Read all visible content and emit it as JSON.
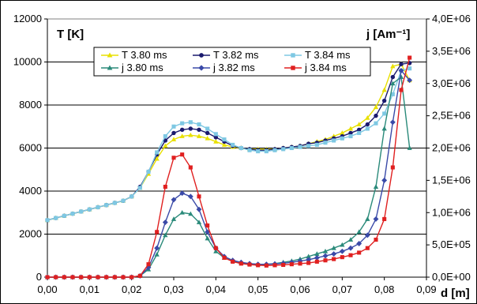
{
  "chart_data": {
    "type": "line",
    "xlabel": "d [m]",
    "ylabel_left": "T [K]",
    "ylabel_right": "j [Am⁻¹]",
    "x_ticks": [
      "0,00",
      "0,01",
      "0,02",
      "0,03",
      "0,04",
      "0,05",
      "0,06",
      "0,07",
      "0,08",
      "0,09"
    ],
    "xlim": [
      0,
      0.09
    ],
    "y_left_ticks": [
      "0",
      "2000",
      "4000",
      "6000",
      "8000",
      "10000",
      "12000"
    ],
    "ylim_left": [
      0,
      12000
    ],
    "y_right_ticks": [
      "0,0E+00",
      "5,0E+05",
      "1,0E+06",
      "1,5E+06",
      "2,0E+06",
      "2,5E+06",
      "3,0E+06",
      "3,5E+06",
      "4,0E+06"
    ],
    "ylim_right": [
      0,
      4000000
    ],
    "grid": "horizontal",
    "legend_position": "top-center",
    "series": [
      {
        "name": "T 3.80 ms",
        "axis": "left",
        "color": "#e8e000",
        "marker": "triangle",
        "line": true,
        "x": [
          0,
          0.002,
          0.004,
          0.006,
          0.008,
          0.01,
          0.012,
          0.014,
          0.016,
          0.018,
          0.02,
          0.022,
          0.024,
          0.026,
          0.028,
          0.03,
          0.032,
          0.034,
          0.036,
          0.038,
          0.04,
          0.042,
          0.044,
          0.046,
          0.048,
          0.05,
          0.052,
          0.054,
          0.056,
          0.058,
          0.06,
          0.062,
          0.064,
          0.066,
          0.068,
          0.07,
          0.072,
          0.074,
          0.076,
          0.078,
          0.08,
          0.082,
          0.084,
          0.086
        ],
        "y": [
          2650,
          2750,
          2850,
          2950,
          3050,
          3150,
          3250,
          3350,
          3450,
          3550,
          3750,
          4150,
          4800,
          5500,
          6100,
          6400,
          6550,
          6600,
          6550,
          6450,
          6300,
          6150,
          6050,
          6000,
          5950,
          5950,
          5950,
          5950,
          6000,
          6050,
          6100,
          6200,
          6300,
          6400,
          6550,
          6700,
          6900,
          7100,
          7400,
          7900,
          8700,
          9800,
          9900,
          9150
        ]
      },
      {
        "name": "T 3.82 ms",
        "axis": "left",
        "color": "#1a1a6e",
        "marker": "circle",
        "line": true,
        "x": [
          0,
          0.002,
          0.004,
          0.006,
          0.008,
          0.01,
          0.012,
          0.014,
          0.016,
          0.018,
          0.02,
          0.022,
          0.024,
          0.026,
          0.028,
          0.03,
          0.032,
          0.034,
          0.036,
          0.038,
          0.04,
          0.042,
          0.044,
          0.046,
          0.048,
          0.05,
          0.052,
          0.054,
          0.056,
          0.058,
          0.06,
          0.062,
          0.064,
          0.066,
          0.068,
          0.07,
          0.072,
          0.074,
          0.076,
          0.078,
          0.08,
          0.082,
          0.084,
          0.086
        ],
        "y": [
          2650,
          2750,
          2850,
          2950,
          3050,
          3150,
          3250,
          3350,
          3450,
          3550,
          3750,
          4200,
          4900,
          5700,
          6350,
          6700,
          6850,
          6900,
          6850,
          6700,
          6500,
          6300,
          6100,
          6000,
          5950,
          5900,
          5900,
          5950,
          6000,
          6050,
          6100,
          6200,
          6250,
          6350,
          6450,
          6550,
          6700,
          6850,
          7100,
          7500,
          8200,
          9300,
          9900,
          9950
        ]
      },
      {
        "name": "T 3.84 ms",
        "axis": "left",
        "color": "#7ec8e3",
        "marker": "square",
        "line": true,
        "x": [
          0,
          0.002,
          0.004,
          0.006,
          0.008,
          0.01,
          0.012,
          0.014,
          0.016,
          0.018,
          0.02,
          0.022,
          0.024,
          0.026,
          0.028,
          0.03,
          0.032,
          0.034,
          0.036,
          0.038,
          0.04,
          0.042,
          0.044,
          0.046,
          0.048,
          0.05,
          0.052,
          0.054,
          0.056,
          0.058,
          0.06,
          0.062,
          0.064,
          0.066,
          0.068,
          0.07,
          0.072,
          0.074,
          0.076,
          0.078,
          0.08,
          0.082,
          0.084,
          0.086
        ],
        "y": [
          2650,
          2750,
          2850,
          2950,
          3050,
          3150,
          3250,
          3350,
          3450,
          3550,
          3750,
          4150,
          4900,
          5800,
          6550,
          7000,
          7150,
          7200,
          7100,
          6900,
          6650,
          6400,
          6150,
          6000,
          5900,
          5850,
          5850,
          5900,
          5950,
          6000,
          6050,
          6100,
          6150,
          6250,
          6350,
          6450,
          6550,
          6700,
          6900,
          7150,
          7600,
          8500,
          9600,
          9700
        ]
      },
      {
        "name": "j 3.80 ms",
        "axis": "right",
        "color": "#2a8a7a",
        "marker": "triangle",
        "line": true,
        "x": [
          0,
          0.002,
          0.004,
          0.006,
          0.008,
          0.01,
          0.012,
          0.014,
          0.016,
          0.018,
          0.02,
          0.022,
          0.024,
          0.026,
          0.028,
          0.03,
          0.032,
          0.034,
          0.036,
          0.038,
          0.04,
          0.042,
          0.044,
          0.046,
          0.048,
          0.05,
          0.052,
          0.054,
          0.056,
          0.058,
          0.06,
          0.062,
          0.064,
          0.066,
          0.068,
          0.07,
          0.072,
          0.074,
          0.076,
          0.078,
          0.08,
          0.082,
          0.084,
          0.086
        ],
        "y": [
          0,
          0,
          0,
          0,
          0,
          0,
          0,
          0,
          0,
          0,
          0,
          20000,
          120000,
          350000,
          650000,
          900000,
          1000000,
          980000,
          850000,
          600000,
          400000,
          300000,
          250000,
          220000,
          210000,
          200000,
          200000,
          210000,
          230000,
          250000,
          280000,
          320000,
          360000,
          400000,
          450000,
          500000,
          580000,
          700000,
          900000,
          1400000,
          2300000,
          3000000,
          3100000,
          2000000
        ]
      },
      {
        "name": "j 3.82 ms",
        "axis": "right",
        "color": "#3a4aa8",
        "marker": "diamond",
        "line": true,
        "x": [
          0,
          0.002,
          0.004,
          0.006,
          0.008,
          0.01,
          0.012,
          0.014,
          0.016,
          0.018,
          0.02,
          0.022,
          0.024,
          0.026,
          0.028,
          0.03,
          0.032,
          0.034,
          0.036,
          0.038,
          0.04,
          0.042,
          0.044,
          0.046,
          0.048,
          0.05,
          0.052,
          0.054,
          0.056,
          0.058,
          0.06,
          0.062,
          0.064,
          0.066,
          0.068,
          0.07,
          0.072,
          0.074,
          0.076,
          0.078,
          0.08,
          0.082,
          0.084,
          0.086
        ],
        "y": [
          0,
          0,
          0,
          0,
          0,
          0,
          0,
          0,
          0,
          0,
          0,
          20000,
          150000,
          450000,
          850000,
          1200000,
          1300000,
          1250000,
          1050000,
          700000,
          450000,
          320000,
          260000,
          230000,
          210000,
          200000,
          200000,
          205000,
          215000,
          230000,
          250000,
          270000,
          300000,
          330000,
          360000,
          400000,
          450000,
          520000,
          650000,
          900000,
          1500000,
          2400000,
          3200000,
          3050000
        ]
      },
      {
        "name": "j 3.84 ms",
        "axis": "right",
        "color": "#e02020",
        "marker": "square",
        "line": true,
        "x": [
          0,
          0.002,
          0.004,
          0.006,
          0.008,
          0.01,
          0.012,
          0.014,
          0.016,
          0.018,
          0.02,
          0.022,
          0.024,
          0.026,
          0.028,
          0.03,
          0.032,
          0.034,
          0.036,
          0.038,
          0.04,
          0.042,
          0.044,
          0.046,
          0.048,
          0.05,
          0.052,
          0.054,
          0.056,
          0.058,
          0.06,
          0.062,
          0.064,
          0.066,
          0.068,
          0.07,
          0.072,
          0.074,
          0.076,
          0.078,
          0.08,
          0.082,
          0.084,
          0.086
        ],
        "y": [
          0,
          0,
          0,
          0,
          0,
          0,
          0,
          0,
          0,
          0,
          0,
          20000,
          200000,
          700000,
          1400000,
          1850000,
          1900000,
          1700000,
          1250000,
          800000,
          450000,
          300000,
          240000,
          210000,
          195000,
          185000,
          180000,
          185000,
          190000,
          200000,
          210000,
          220000,
          240000,
          260000,
          280000,
          310000,
          340000,
          380000,
          450000,
          580000,
          900000,
          1700000,
          2900000,
          3400000
        ]
      }
    ]
  }
}
